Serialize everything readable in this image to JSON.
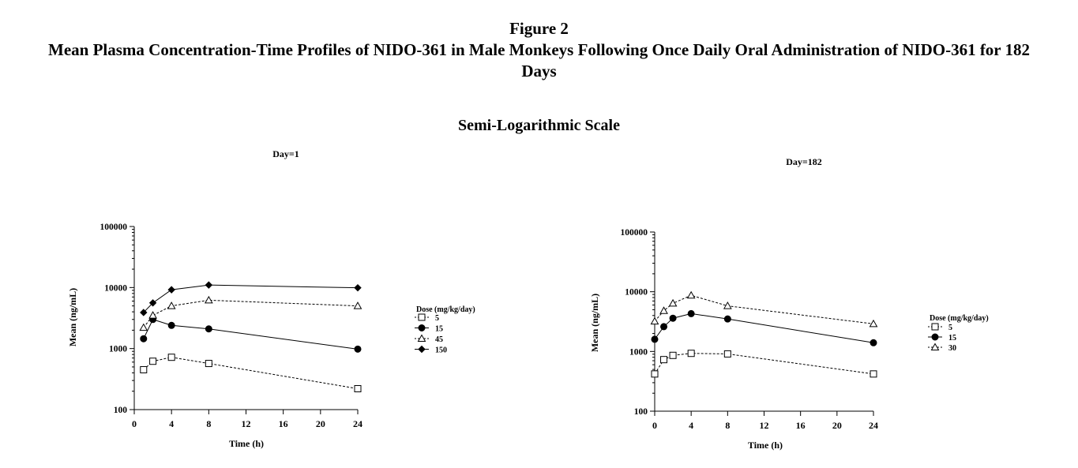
{
  "figure": {
    "label": "Figure 2",
    "title": "Mean Plasma Concentration-Time Profiles of NIDO-361 in Male Monkeys Following Once Daily Oral Administration of NIDO-361 for 182 Days",
    "scale_label": "Semi-Logarithmic Scale"
  },
  "chart_data": [
    {
      "type": "line",
      "title": "Day=1",
      "xlabel": "Time (h)",
      "ylabel": "Mean (ng/mL)",
      "xlim": [
        0,
        24
      ],
      "ylim": [
        100,
        100000
      ],
      "yscale": "log",
      "xticks": [
        0,
        4,
        8,
        12,
        16,
        20,
        24
      ],
      "yticks": [
        100,
        1000,
        10000,
        100000
      ],
      "legend_title": "Dose (mg/kg/day)",
      "legend_position": "right",
      "series": [
        {
          "name": "5",
          "marker": "open-square",
          "dash": "dashed",
          "x": [
            1,
            2,
            4,
            8,
            24
          ],
          "y": [
            450,
            620,
            720,
            570,
            220
          ]
        },
        {
          "name": "15",
          "marker": "filled-circle",
          "dash": "solid",
          "x": [
            1,
            2,
            4,
            8,
            24
          ],
          "y": [
            1450,
            3000,
            2400,
            2100,
            980
          ]
        },
        {
          "name": "45",
          "marker": "open-triangle",
          "dash": "dashed",
          "x": [
            1,
            2,
            4,
            8,
            24
          ],
          "y": [
            2200,
            3500,
            5000,
            6200,
            5000
          ]
        },
        {
          "name": "150",
          "marker": "filled-diamond",
          "dash": "solid",
          "x": [
            1,
            2,
            4,
            8,
            24
          ],
          "y": [
            3900,
            5600,
            9200,
            11000,
            9900
          ]
        }
      ]
    },
    {
      "type": "line",
      "title": "Day=182",
      "xlabel": "Time (h)",
      "ylabel": "Mean (ng/mL)",
      "xlim": [
        0,
        24
      ],
      "ylim": [
        100,
        100000
      ],
      "yscale": "log",
      "xticks": [
        0,
        4,
        8,
        12,
        16,
        20,
        24
      ],
      "yticks": [
        100,
        1000,
        10000,
        100000
      ],
      "legend_title": "Dose (mg/kg/day)",
      "legend_position": "right",
      "series": [
        {
          "name": "5",
          "marker": "open-square",
          "dash": "dashed",
          "x": [
            0,
            1,
            2,
            4,
            8,
            24
          ],
          "y": [
            420,
            730,
            860,
            930,
            910,
            420
          ]
        },
        {
          "name": "15",
          "marker": "filled-circle",
          "dash": "solid",
          "x": [
            0,
            1,
            2,
            4,
            8,
            24
          ],
          "y": [
            1600,
            2600,
            3600,
            4300,
            3500,
            1400
          ]
        },
        {
          "name": "30",
          "marker": "open-triangle",
          "dash": "dashed",
          "x": [
            0,
            1,
            2,
            4,
            8,
            24
          ],
          "y": [
            3200,
            4800,
            6400,
            8700,
            5800,
            2900
          ]
        }
      ]
    }
  ]
}
